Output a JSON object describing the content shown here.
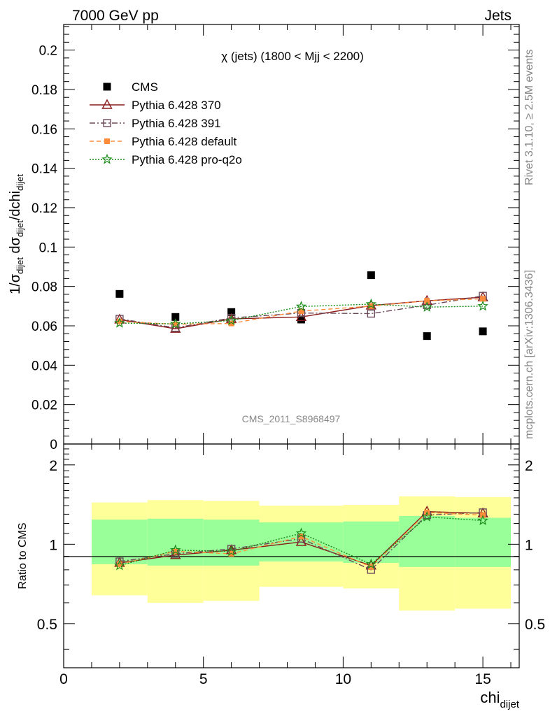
{
  "header": {
    "energy_label": "7000 GeV pp",
    "process_label": "Jets"
  },
  "side_text": {
    "rivet": "Rivet 3.1.10, ≥ 2.5M events",
    "mcplots": "mcplots.cern.ch [arXiv:1306.3436]"
  },
  "watermark": "CMS_2011_S8968497",
  "colors": {
    "cms": "#000000",
    "p370": "#8b1a1a",
    "p391": "#6b4a5a",
    "pdefault": "#ff8c3a",
    "pq2o": "#1a8c1a",
    "band_inner": "#99ff99",
    "band_outer": "#ffff99"
  },
  "chart_data": [
    {
      "type": "scatter",
      "panel": "main",
      "title": "χ (jets) (1800 < Mjj < 2200)",
      "ylabel_parts": {
        "a": "1/σ",
        "a_sub": "dijet",
        "b": " dσ",
        "b_sub": "dijet",
        "c": "/dchi",
        "c_sub": "dijet"
      },
      "ylim": [
        0,
        0.213
      ],
      "yticks": [
        0,
        0.02,
        0.04,
        0.06,
        0.08,
        0.1,
        0.12,
        0.14,
        0.16,
        0.18,
        0.2
      ],
      "ytick_labels": [
        "0",
        "0.02",
        "0.04",
        "0.06",
        "0.08",
        "0.1",
        "0.12",
        "0.14",
        "0.16",
        "0.18",
        "0.2"
      ],
      "x": [
        2,
        4,
        6,
        8.5,
        11,
        13,
        15
      ],
      "series": [
        {
          "name": "CMS",
          "key": "cms",
          "marker": "square",
          "values": [
            0.0762,
            0.0645,
            0.067,
            0.0632,
            0.0857,
            0.0548,
            0.0572
          ]
        },
        {
          "name": "Pythia 6.428 370",
          "key": "p370",
          "marker": "triangle",
          "dash": "",
          "values": [
            0.0632,
            0.0585,
            0.0635,
            0.0645,
            0.0703,
            0.0727,
            0.0745
          ]
        },
        {
          "name": "Pythia 6.428 391",
          "key": "p391",
          "marker": "open-square",
          "dash": "8,3,2,3",
          "values": [
            0.0635,
            0.059,
            0.064,
            0.0665,
            0.0662,
            0.0705,
            0.0752
          ]
        },
        {
          "name": "Pythia 6.428 default",
          "key": "pdefault",
          "marker": "filled-square",
          "dash": "6,4",
          "values": [
            0.0622,
            0.0608,
            0.0612,
            0.0675,
            0.07,
            0.0727,
            0.0737
          ]
        },
        {
          "name": "Pythia 6.428 pro-q2o",
          "key": "pq2o",
          "marker": "star",
          "dash": "2,2",
          "values": [
            0.0614,
            0.061,
            0.0627,
            0.0698,
            0.071,
            0.0695,
            0.07
          ]
        }
      ]
    },
    {
      "type": "line",
      "panel": "ratio",
      "ylabel": "Ratio to CMS",
      "ylim": [
        0.34,
        2.4
      ],
      "yticks": [
        0.5,
        1,
        2
      ],
      "ytick_labels": [
        "0.5",
        "1",
        "2"
      ],
      "xlim": [
        0,
        16.3
      ],
      "xticks": [
        0,
        5,
        10,
        15
      ],
      "xtick_labels": [
        "0",
        "5",
        "10",
        "15"
      ],
      "xlabel": "chi",
      "xlabel_sub": "dijet",
      "bins": [
        [
          1,
          3
        ],
        [
          3,
          5
        ],
        [
          5,
          7
        ],
        [
          7,
          10
        ],
        [
          10,
          12
        ],
        [
          12,
          14
        ],
        [
          14,
          16
        ]
      ],
      "band_inner": [
        [
          0.84,
          1.24
        ],
        [
          0.83,
          1.25
        ],
        [
          0.83,
          1.24
        ],
        [
          0.86,
          1.21
        ],
        [
          0.85,
          1.22
        ],
        [
          0.82,
          1.28
        ],
        [
          0.82,
          1.26
        ]
      ],
      "band_outer": [
        [
          0.64,
          1.44
        ],
        [
          0.6,
          1.47
        ],
        [
          0.61,
          1.46
        ],
        [
          0.69,
          1.4
        ],
        [
          0.68,
          1.41
        ],
        [
          0.56,
          1.52
        ],
        [
          0.57,
          1.51
        ]
      ],
      "x": [
        2,
        4,
        6,
        8.5,
        11,
        13,
        15
      ],
      "series": [
        {
          "name": "Pythia 6.428 370",
          "key": "p370",
          "marker": "triangle",
          "dash": "",
          "values": [
            0.85,
            0.91,
            0.95,
            1.02,
            0.83,
            1.33,
            1.31
          ]
        },
        {
          "name": "Pythia 6.428 391",
          "key": "p391",
          "marker": "open-square",
          "dash": "8,3,2,3",
          "values": [
            0.86,
            0.92,
            0.96,
            1.05,
            0.8,
            1.29,
            1.32
          ]
        },
        {
          "name": "Pythia 6.428 default",
          "key": "pdefault",
          "marker": "filled-square",
          "dash": "6,4",
          "values": [
            0.84,
            0.94,
            0.92,
            1.07,
            0.82,
            1.32,
            1.29
          ]
        },
        {
          "name": "Pythia 6.428 pro-q2o",
          "key": "pq2o",
          "marker": "star",
          "dash": "2,2",
          "values": [
            0.83,
            0.95,
            0.94,
            1.1,
            0.84,
            1.27,
            1.23
          ]
        }
      ]
    }
  ]
}
